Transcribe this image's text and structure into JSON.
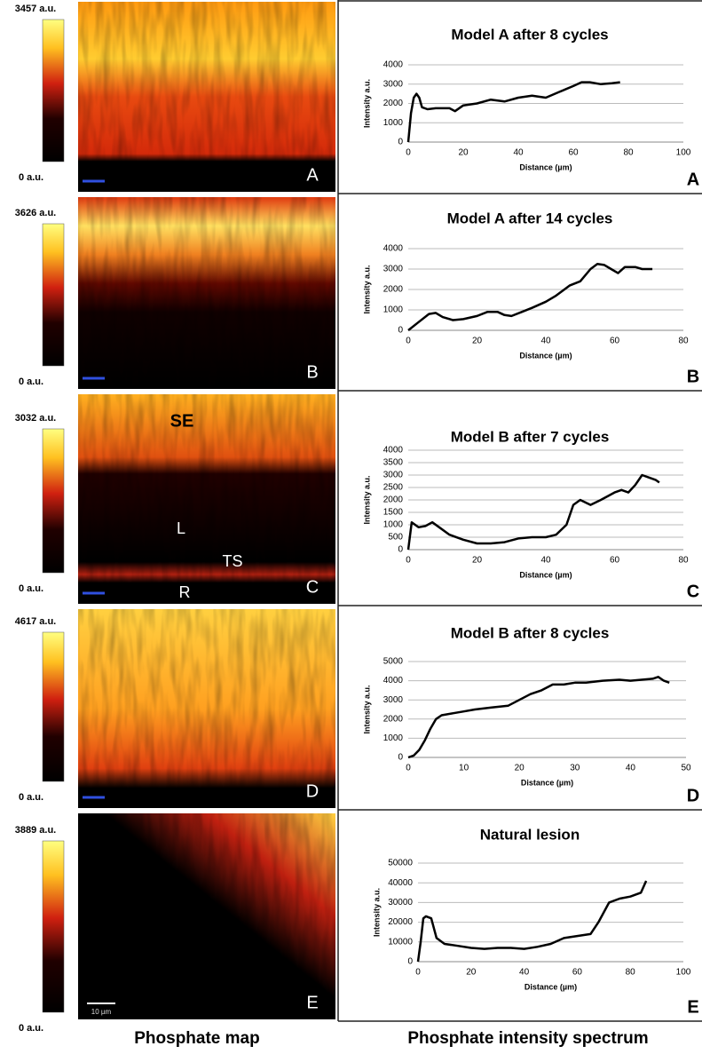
{
  "maps": [
    {
      "max_label": "3457 a.u.",
      "min_label": "0 a.u.",
      "letter": "A",
      "annotations": []
    },
    {
      "max_label": "3626 a.u.",
      "min_label": "0 a.u.",
      "letter": "B",
      "annotations": []
    },
    {
      "max_label": "3032 a.u.",
      "min_label": "0 a.u.",
      "letter": "C",
      "annotations": [
        "SE",
        "L",
        "TS",
        "R"
      ]
    },
    {
      "max_label": "4617 a.u.",
      "min_label": "0 a.u.",
      "letter": "D",
      "annotations": []
    },
    {
      "max_label": "3889 a.u.",
      "min_label": "0 a.u.",
      "letter": "E",
      "annotations": [
        "10 µm"
      ]
    }
  ],
  "captions": [
    "Phosphate map",
    "Phosphate intensity spectrum"
  ],
  "chart_data": [
    {
      "type": "line",
      "title": "Model A after 8 cycles",
      "x_label": "Distance (µm)",
      "y_label": "Intensity a.u.",
      "panel": "A",
      "color": "#000000",
      "grid": true,
      "x": [
        0,
        1,
        2,
        3,
        4,
        5,
        7,
        10,
        15,
        17,
        20,
        25,
        30,
        35,
        40,
        45,
        50,
        55,
        60,
        63,
        66,
        70,
        74,
        77
      ],
      "values": [
        0,
        1500,
        2300,
        2500,
        2300,
        1800,
        1700,
        1750,
        1750,
        1600,
        1900,
        2000,
        2200,
        2100,
        2300,
        2400,
        2300,
        2600,
        2900,
        3100,
        3100,
        3000,
        3050,
        3100
      ],
      "xlim": [
        0,
        100
      ],
      "xticks": [
        0,
        20,
        40,
        60,
        80,
        100
      ],
      "ylim": [
        0,
        4000
      ],
      "yticks": [
        0,
        1000,
        2000,
        3000,
        4000
      ]
    },
    {
      "type": "line",
      "title": "Model A after 14 cycles",
      "x_label": "Distance (µm)",
      "y_label": "Intensity a.u.",
      "panel": "B",
      "color": "#000000",
      "grid": true,
      "x": [
        0,
        3,
        6,
        8,
        10,
        13,
        16,
        20,
        23,
        26,
        28,
        30,
        33,
        36,
        40,
        43,
        47,
        50,
        53,
        55,
        57,
        59,
        61,
        63,
        66,
        68,
        71
      ],
      "values": [
        0,
        400,
        800,
        850,
        650,
        500,
        550,
        700,
        900,
        900,
        750,
        700,
        900,
        1100,
        1400,
        1700,
        2200,
        2400,
        3000,
        3250,
        3200,
        3000,
        2800,
        3100,
        3100,
        3000,
        3000
      ],
      "xlim": [
        0,
        80
      ],
      "xticks": [
        0,
        20,
        40,
        60,
        80
      ],
      "ylim": [
        0,
        4000
      ],
      "yticks": [
        0,
        1000,
        2000,
        3000,
        4000
      ]
    },
    {
      "type": "line",
      "title": "Model B after 7 cycles",
      "x_label": "Distance (µm)",
      "y_label": "Intensity a.u.",
      "panel": "C",
      "color": "#000000",
      "grid": true,
      "x": [
        0,
        1,
        3,
        5,
        7,
        9,
        12,
        16,
        20,
        24,
        28,
        32,
        36,
        40,
        43,
        46,
        48,
        50,
        53,
        56,
        60,
        62,
        64,
        66,
        68,
        70,
        72,
        73
      ],
      "values": [
        0,
        1100,
        900,
        950,
        1100,
        900,
        600,
        400,
        250,
        250,
        300,
        450,
        500,
        500,
        600,
        1000,
        1800,
        2000,
        1800,
        2000,
        2300,
        2400,
        2300,
        2600,
        3000,
        2900,
        2800,
        2700
      ],
      "xlim": [
        0,
        80
      ],
      "xticks": [
        0,
        20,
        40,
        60,
        80
      ],
      "ylim": [
        0,
        4000
      ],
      "yticks": [
        0,
        500,
        1000,
        1500,
        2000,
        2500,
        3000,
        3500,
        4000
      ]
    },
    {
      "type": "line",
      "title": "Model B after 8 cycles",
      "x_label": "Distance (µm)",
      "y_label": "Intensity a.u.",
      "panel": "D",
      "color": "#000000",
      "grid": true,
      "x": [
        0,
        1,
        2,
        3,
        4,
        5,
        6,
        8,
        10,
        12,
        15,
        18,
        20,
        22,
        24,
        26,
        28,
        30,
        32,
        35,
        38,
        40,
        42,
        44,
        45,
        46,
        47
      ],
      "values": [
        0,
        100,
        400,
        900,
        1500,
        2000,
        2200,
        2300,
        2400,
        2500,
        2600,
        2700,
        3000,
        3300,
        3500,
        3800,
        3800,
        3900,
        3900,
        4000,
        4050,
        4000,
        4050,
        4100,
        4200,
        4000,
        3900
      ],
      "xlim": [
        0,
        50
      ],
      "xticks": [
        0,
        10,
        20,
        30,
        40,
        50
      ],
      "ylim": [
        0,
        5000
      ],
      "yticks": [
        0,
        1000,
        2000,
        3000,
        4000,
        5000
      ]
    },
    {
      "type": "line",
      "title": "Natural lesion",
      "x_label": "Distance (µm)",
      "y_label": "Intensity a.u.",
      "panel": "E",
      "color": "#000000",
      "grid": true,
      "x": [
        0,
        1,
        2,
        3,
        5,
        7,
        10,
        15,
        20,
        25,
        30,
        35,
        40,
        45,
        50,
        55,
        60,
        65,
        68,
        72,
        76,
        80,
        84,
        86
      ],
      "values": [
        0,
        10000,
        22000,
        23000,
        22000,
        12000,
        9000,
        8000,
        7000,
        6500,
        7000,
        7000,
        6500,
        7500,
        9000,
        12000,
        13000,
        14000,
        20000,
        30000,
        32000,
        33000,
        35000,
        41000
      ],
      "xlim": [
        0,
        100
      ],
      "xticks": [
        0,
        20,
        40,
        60,
        80,
        100
      ],
      "ylim": [
        0,
        50000
      ],
      "yticks": [
        0,
        10000,
        20000,
        30000,
        40000,
        50000
      ]
    }
  ]
}
